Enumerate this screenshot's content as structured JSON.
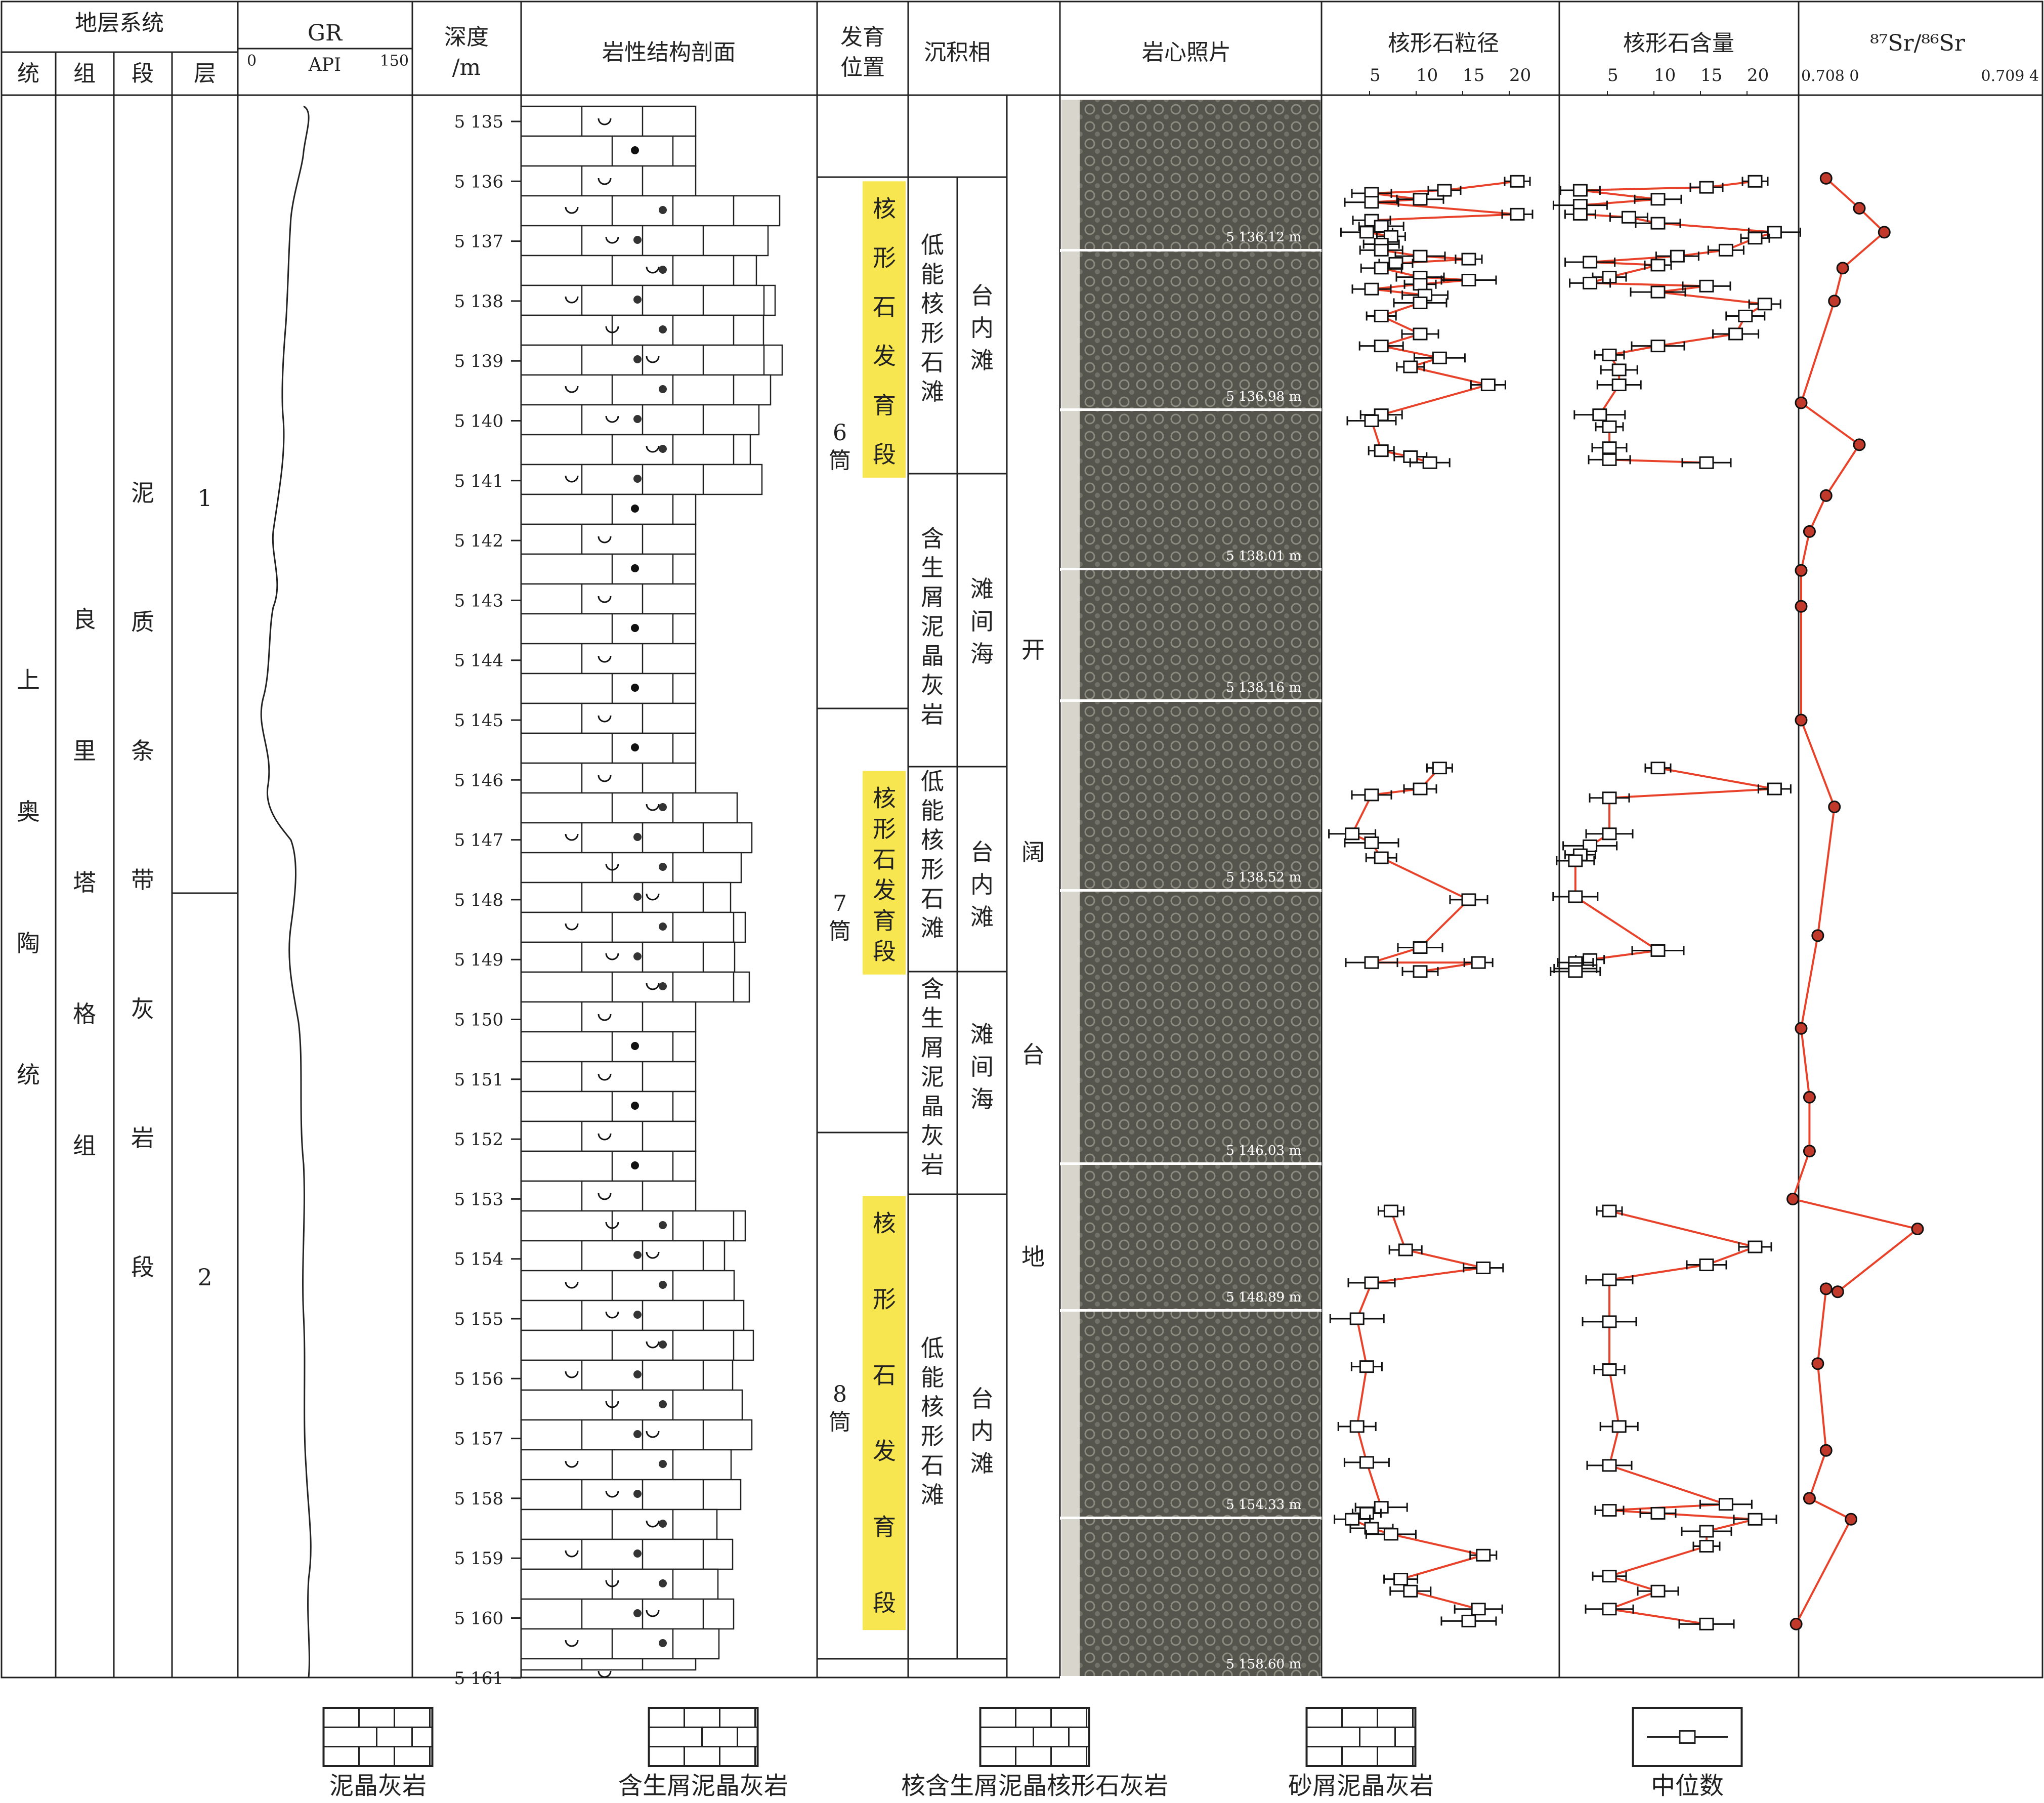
{
  "header": {
    "stratigraphy": "地层系统",
    "sub": [
      "统",
      "组",
      "段",
      "层"
    ],
    "gr_title": "GR",
    "gr_unit": "API",
    "gr_min": "0",
    "gr_max": "150",
    "depth_title_1": "深度",
    "depth_title_2": "/m",
    "lithology": "岩性结构剖面",
    "position_1": "发育",
    "position_2": "位置",
    "facies": "沉积相",
    "core_photo": "岩心照片",
    "size_title": "核形石粒径",
    "size_ticks": [
      "5",
      "10",
      "15",
      "20"
    ],
    "content_title": "核形石含量",
    "content_ticks": [
      "5",
      "10",
      "15",
      "20"
    ],
    "sr_title": "⁸⁷Sr/⁸⁶Sr",
    "sr_min": "0.708 0",
    "sr_max": "0.709 4"
  },
  "strata": {
    "series": "上奥陶统",
    "formation": "良里塔格组",
    "member": "泥质条带灰岩段",
    "layers": [
      "1",
      "2"
    ]
  },
  "depth_ticks": [
    "5 135",
    "5 136",
    "5 137",
    "5 138",
    "5 139",
    "5 140",
    "5 141",
    "5 142",
    "5 143",
    "5 144",
    "5 145",
    "5 146",
    "5 147",
    "5 148",
    "5 149",
    "5 150",
    "5 151",
    "5 152",
    "5 153",
    "5 154",
    "5 155",
    "5 156",
    "5 157",
    "5 158",
    "5 159",
    "5 160",
    "5 161"
  ],
  "cores": [
    "6筒",
    "7筒",
    "8筒"
  ],
  "dev_segments": [
    "核形石发育段",
    "核形石发育段",
    "核形石发育段"
  ],
  "facies_sub": [
    "低能核形石滩",
    "含生屑泥晶灰岩",
    "低能核形石滩",
    "含生屑泥晶灰岩",
    "低能核形石滩"
  ],
  "facies_mid": [
    "台内滩",
    "滩间海",
    "台内滩",
    "滩间海",
    "台内滩"
  ],
  "facies_main": "开阔台地",
  "photos": [
    "5 136.12 m",
    "5 136.98 m",
    "5 138.01 m",
    "5 138.16 m",
    "5 138.52 m",
    "5 146.03 m",
    "5 148.89 m",
    "5 154.33 m",
    "5 158.60 m"
  ],
  "legend": [
    "泥晶灰岩",
    "含生屑泥晶灰岩",
    "核含生屑泥晶核形石灰岩",
    "砂屑泥晶灰岩",
    "中位数"
  ],
  "colors": {
    "series_line": "#e8422a",
    "marker": "#c0392b",
    "highlight": "#f7e64f",
    "core_tone": "#5a5a52"
  },
  "chart_data": [
    {
      "type": "scatter",
      "title": "核形石粒径",
      "xlim": [
        0,
        25
      ],
      "series": [
        {
          "points": [
            [
              20,
              5136.0
            ],
            [
              12.5,
              5136.15
            ],
            [
              5,
              5136.2
            ],
            [
              10,
              5136.3
            ],
            [
              5,
              5136.35
            ],
            [
              20,
              5136.55
            ],
            [
              5,
              5136.65
            ],
            [
              6,
              5136.75
            ],
            [
              4.5,
              5136.85
            ],
            [
              7,
              5136.92
            ],
            [
              6,
              5137.05
            ],
            [
              6,
              5137.15
            ],
            [
              10,
              5137.25
            ],
            [
              15,
              5137.3
            ],
            [
              7.5,
              5137.37
            ],
            [
              6,
              5137.45
            ],
            [
              10,
              5137.6
            ],
            [
              15,
              5137.65
            ],
            [
              10,
              5137.72
            ],
            [
              5,
              5137.8
            ],
            [
              10.5,
              5137.9
            ],
            [
              10,
              5138.03
            ],
            [
              6,
              5138.25
            ],
            [
              10,
              5138.55
            ],
            [
              6,
              5138.75
            ],
            [
              12,
              5138.95
            ],
            [
              9,
              5139.1
            ],
            [
              17,
              5139.4
            ],
            [
              6,
              5139.9
            ],
            [
              5,
              5140.0
            ],
            [
              6,
              5140.5
            ],
            [
              9,
              5140.6
            ],
            [
              11,
              5140.7
            ]
          ]
        },
        {
          "points": [
            [
              12,
              5145.8
            ],
            [
              10,
              5146.15
            ],
            [
              5,
              5146.25
            ],
            [
              3,
              5146.9
            ],
            [
              5,
              5147.05
            ],
            [
              6,
              5147.3
            ],
            [
              15,
              5148.0
            ],
            [
              10,
              5148.8
            ],
            [
              5,
              5149.05
            ],
            [
              16,
              5149.05
            ],
            [
              10,
              5149.2
            ]
          ]
        },
        {
          "points": [
            [
              7,
              5153.2
            ],
            [
              8.5,
              5153.85
            ],
            [
              16.5,
              5154.15
            ],
            [
              5,
              5154.4
            ],
            [
              3.5,
              5155.0
            ],
            [
              4.5,
              5155.8
            ],
            [
              3.5,
              5156.8
            ],
            [
              4.5,
              5157.4
            ],
            [
              6,
              5158.15
            ],
            [
              4.5,
              5158.25
            ],
            [
              3,
              5158.35
            ],
            [
              5,
              5158.5
            ],
            [
              7,
              5158.6
            ],
            [
              16.5,
              5158.95
            ],
            [
              8,
              5159.35
            ],
            [
              9,
              5159.55
            ],
            [
              16,
              5159.85
            ],
            [
              15,
              5160.05
            ]
          ]
        }
      ]
    },
    {
      "type": "scatter",
      "title": "核形石含量",
      "xlim": [
        0,
        25
      ],
      "series": [
        {
          "points": [
            [
              20,
              5136.0
            ],
            [
              15,
              5136.1
            ],
            [
              2,
              5136.15
            ],
            [
              10,
              5136.3
            ],
            [
              2,
              5136.4
            ],
            [
              2,
              5136.55
            ],
            [
              7,
              5136.6
            ],
            [
              10,
              5136.7
            ],
            [
              22,
              5136.85
            ],
            [
              20,
              5136.95
            ],
            [
              17,
              5137.15
            ],
            [
              12,
              5137.25
            ],
            [
              3,
              5137.35
            ],
            [
              10,
              5137.4
            ],
            [
              5,
              5137.6
            ],
            [
              3,
              5137.7
            ],
            [
              15,
              5137.75
            ],
            [
              10,
              5137.85
            ],
            [
              21,
              5138.05
            ],
            [
              19,
              5138.25
            ],
            [
              18,
              5138.55
            ],
            [
              10,
              5138.75
            ],
            [
              5,
              5138.9
            ],
            [
              6,
              5139.15
            ],
            [
              6,
              5139.4
            ],
            [
              4,
              5139.9
            ],
            [
              5,
              5140.1
            ],
            [
              5,
              5140.45
            ],
            [
              5,
              5140.65
            ],
            [
              15,
              5140.7
            ]
          ]
        },
        {
          "points": [
            [
              10,
              5145.8
            ],
            [
              22,
              5146.15
            ],
            [
              5,
              5146.3
            ],
            [
              5,
              5146.9
            ],
            [
              3,
              5147.1
            ],
            [
              2,
              5147.25
            ],
            [
              1.5,
              5147.35
            ],
            [
              1.5,
              5147.95
            ],
            [
              10,
              5148.85
            ],
            [
              3,
              5149.0
            ],
            [
              1.5,
              5149.05
            ],
            [
              1.5,
              5149.15
            ],
            [
              1.5,
              5149.2
            ]
          ]
        },
        {
          "points": [
            [
              5,
              5153.2
            ],
            [
              20,
              5153.8
            ],
            [
              15,
              5154.1
            ],
            [
              5,
              5154.35
            ],
            [
              5,
              5155.05
            ],
            [
              5,
              5155.85
            ],
            [
              6,
              5156.8
            ],
            [
              5,
              5157.45
            ],
            [
              17,
              5158.1
            ],
            [
              5,
              5158.2
            ],
            [
              10,
              5158.25
            ],
            [
              20,
              5158.35
            ],
            [
              15,
              5158.55
            ],
            [
              15,
              5158.8
            ],
            [
              5,
              5159.3
            ],
            [
              10,
              5159.55
            ],
            [
              5,
              5159.85
            ],
            [
              15,
              5160.1
            ]
          ]
        }
      ]
    },
    {
      "type": "line",
      "title": "⁸⁷Sr/⁸⁶Sr",
      "xlim": [
        0.708,
        0.7094
      ],
      "points": [
        [
          0.70815,
          5135.95
        ],
        [
          0.70835,
          5136.45
        ],
        [
          0.7085,
          5136.85
        ],
        [
          0.70825,
          5137.45
        ],
        [
          0.7082,
          5138.0
        ],
        [
          0.708,
          5139.7
        ],
        [
          0.70835,
          5140.4
        ],
        [
          0.70815,
          5141.25
        ],
        [
          0.70805,
          5141.85
        ],
        [
          0.708,
          5142.5
        ],
        [
          0.708,
          5143.1
        ],
        [
          0.708,
          5145.0
        ],
        [
          0.7082,
          5146.45
        ],
        [
          0.7081,
          5148.6
        ],
        [
          0.708,
          5150.15
        ],
        [
          0.70805,
          5151.3
        ],
        [
          0.70805,
          5152.2
        ],
        [
          0.70795,
          5153.0
        ],
        [
          0.7087,
          5153.5
        ],
        [
          0.70822,
          5154.55
        ],
        [
          0.70815,
          5154.5
        ],
        [
          0.7081,
          5155.75
        ],
        [
          0.70815,
          5157.2
        ],
        [
          0.70805,
          5158.0
        ],
        [
          0.7083,
          5158.35
        ],
        [
          0.70797,
          5160.1
        ]
      ]
    }
  ]
}
